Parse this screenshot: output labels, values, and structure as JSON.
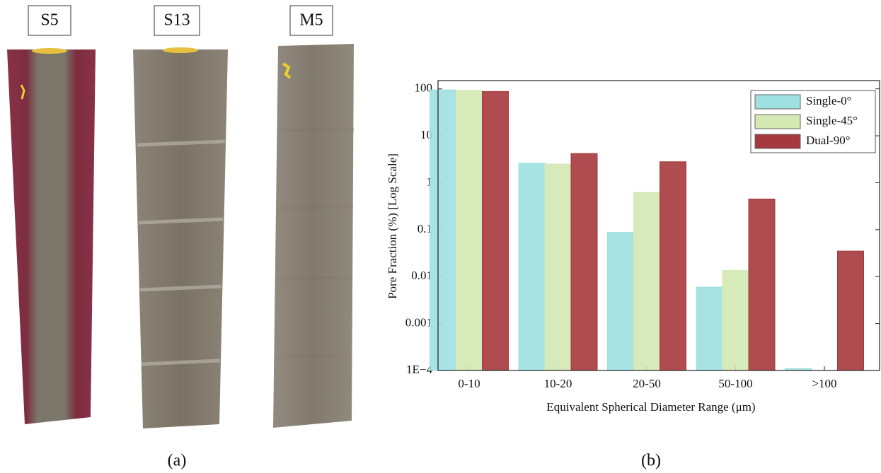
{
  "panel_a": {
    "labels": [
      "S5",
      "S13",
      "M5"
    ],
    "caption": "(a)"
  },
  "panel_b": {
    "caption": "(b)"
  },
  "chart_data": {
    "type": "bar",
    "x_label": "Equivalent Spherical Diameter Range (μm)",
    "y_label": "Pore Fraction (%) [Log Scale]",
    "categories": [
      "0-10",
      "10-20",
      "20-50",
      "50-100",
      ">100"
    ],
    "series": [
      {
        "name": "Single-0°",
        "color": "#9fe0e0",
        "values": [
          95,
          2.6,
          0.088,
          0.006,
          0.00011
        ]
      },
      {
        "name": "Single-45°",
        "color": "#d3e8b2",
        "values": [
          93,
          2.5,
          0.62,
          0.0135,
          null
        ]
      },
      {
        "name": "Dual-90°",
        "color": "#a5383c",
        "values": [
          88,
          4.2,
          2.8,
          0.45,
          0.035
        ]
      }
    ],
    "y_log": true,
    "ylim": [
      0.0001,
      150
    ],
    "yticks": [
      {
        "value": 0.0001,
        "label": "1E−4"
      },
      0.001,
      0.01,
      0.1,
      1,
      10,
      100
    ],
    "legend": "upper right"
  }
}
